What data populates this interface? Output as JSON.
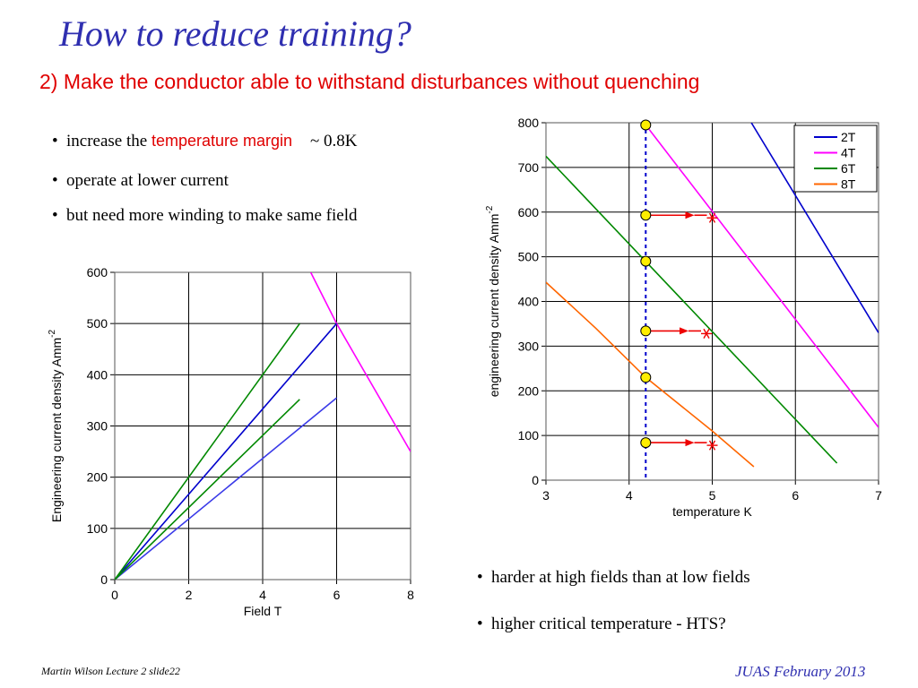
{
  "slide": {
    "title": "How to reduce training?",
    "subtitle": "2) Make the conductor able to withstand disturbances without quenching",
    "bullets_top": [
      {
        "pre": "increase the ",
        "highlight": "temperature margin",
        "post": "~ 0.8K"
      },
      {
        "pre": "operate at lower current",
        "highlight": "",
        "post": ""
      },
      {
        "pre": "but need more winding to make same field",
        "highlight": "",
        "post": ""
      }
    ],
    "bullets_bottom": [
      "harder at high fields than at low fields",
      "higher critical temperature - HTS?"
    ],
    "bullet_glyph": "•",
    "footer_left": "Martin Wilson Lecture 2 slide22",
    "footer_right": "JUAS February 2013"
  },
  "chart_data": [
    {
      "type": "line",
      "xlabel": "Field T",
      "ylabel": "Engineering current density Amm",
      "ylabel_sup": "-2",
      "xlim": [
        0,
        8
      ],
      "ylim": [
        0,
        600
      ],
      "xticks": [
        "0",
        "2",
        "4",
        "6",
        "8"
      ],
      "yticks": [
        "0",
        "100",
        "200",
        "300",
        "400",
        "500",
        "600"
      ],
      "grid": true,
      "series": [
        {
          "color": "#ff00ff",
          "x": [
            5.3,
            6,
            8
          ],
          "y": [
            600,
            500,
            250
          ]
        },
        {
          "color": "#0000cc",
          "x": [
            0,
            6
          ],
          "y": [
            0,
            500
          ]
        },
        {
          "color": "#3a3ae8",
          "x": [
            0,
            6
          ],
          "y": [
            0,
            355
          ]
        },
        {
          "color": "#008800",
          "x": [
            0,
            5
          ],
          "y": [
            0,
            500
          ]
        },
        {
          "color": "#008800",
          "x": [
            0,
            5
          ],
          "y": [
            0,
            352
          ]
        }
      ]
    },
    {
      "type": "line",
      "xlabel": "temperature K",
      "ylabel": "engineering current density Amm",
      "ylabel_sup": "-2",
      "xlim": [
        3,
        7
      ],
      "ylim": [
        0,
        800
      ],
      "xticks": [
        "3",
        "4",
        "5",
        "6",
        "7"
      ],
      "yticks": [
        "0",
        "100",
        "200",
        "300",
        "400",
        "500",
        "600",
        "700",
        "800"
      ],
      "grid": true,
      "legend_position": "top-right",
      "series": [
        {
          "name": "2T",
          "color": "#0000cc",
          "x": [
            5.47,
            7
          ],
          "y": [
            800,
            330
          ]
        },
        {
          "name": "4T",
          "color": "#ff00ff",
          "x": [
            4.2,
            7
          ],
          "y": [
            795,
            118
          ]
        },
        {
          "name": "6T",
          "color": "#008800",
          "x": [
            3,
            6.5
          ],
          "y": [
            725,
            38
          ]
        },
        {
          "name": "8T",
          "color": "#ff6600",
          "x": [
            3,
            3.6,
            4.2,
            5,
            5.5
          ],
          "y": [
            443,
            340,
            230,
            110,
            30
          ]
        }
      ],
      "operating_temperature": 4.2,
      "operating_points": [
        {
          "x": 4.2,
          "y": 795
        },
        {
          "x": 4.2,
          "y": 593
        },
        {
          "x": 4.2,
          "y": 490
        },
        {
          "x": 4.2,
          "y": 334
        },
        {
          "x": 4.2,
          "y": 230
        },
        {
          "x": 4.2,
          "y": 84
        }
      ],
      "margin_arrows": [
        {
          "from_x": 4.2,
          "to_x": 5.0,
          "y": 593
        },
        {
          "from_x": 4.2,
          "to_x": 4.93,
          "y": 334
        },
        {
          "from_x": 4.2,
          "to_x": 5.0,
          "y": 84
        }
      ],
      "marker_color": "#ffee00",
      "arrow_color": "#ee0000",
      "dashed_line_color": "#0000cc"
    }
  ]
}
